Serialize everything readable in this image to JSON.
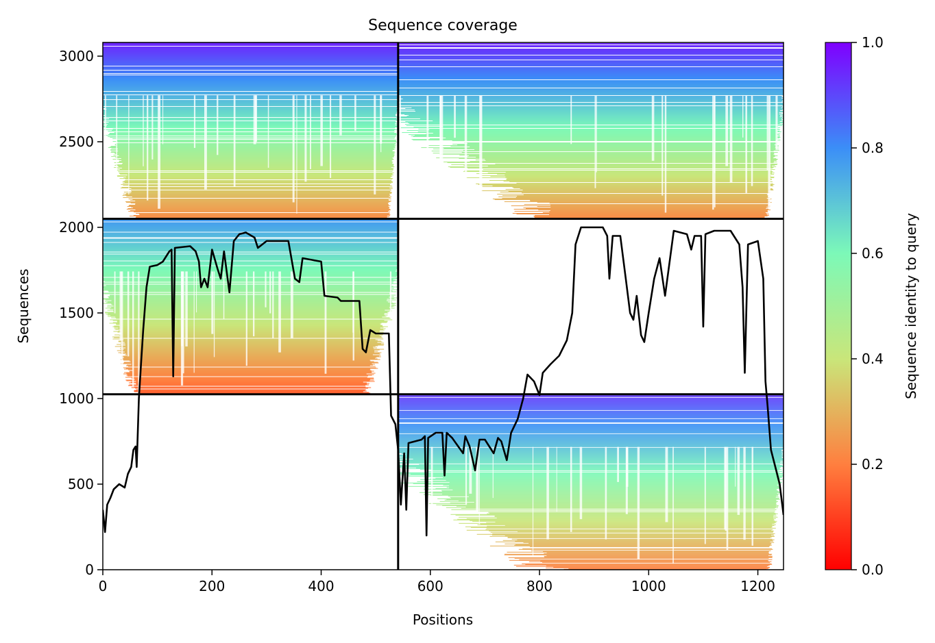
{
  "chart_data": {
    "type": "heatmap",
    "title": "Sequence coverage",
    "xlabel": "Positions",
    "ylabel": "Sequences",
    "xlim": [
      0,
      1247
    ],
    "ylim": [
      0,
      3080
    ],
    "x_ticks": [
      0,
      200,
      400,
      600,
      800,
      1000,
      1200
    ],
    "y_ticks": [
      0,
      500,
      1000,
      1500,
      2000,
      2500,
      3000
    ],
    "colorbar": {
      "label": "Sequence identity to query",
      "range": [
        0.0,
        1.0
      ],
      "ticks": [
        "0.0",
        "0.2",
        "0.4",
        "0.6",
        "0.8",
        "1.0"
      ],
      "colormap": "rainbow",
      "stops": [
        "#ff0000",
        "#ff7f3f",
        "#c9e67a",
        "#7cf9b8",
        "#3b8ef7",
        "#7f00ff"
      ]
    },
    "domain_boundaries": {
      "vertical_x": [
        541
      ],
      "horizontal_y": [
        1025,
        2050
      ]
    },
    "blocks": [
      {
        "x": [
          0,
          541
        ],
        "y": [
          2050,
          3080
        ],
        "identity_top": 0.95,
        "identity_bottom": 0.22,
        "dense_from_x": 70,
        "dense_to_x": 520
      },
      {
        "x": [
          541,
          1247
        ],
        "y": [
          2050,
          3080
        ],
        "identity_top": 0.95,
        "identity_bottom": 0.22,
        "dense_from_x": 860,
        "dense_to_x": 1210
      },
      {
        "x": [
          0,
          541
        ],
        "y": [
          1025,
          2050
        ],
        "identity_top": 0.78,
        "identity_bottom": 0.15,
        "dense_from_x": 70,
        "dense_to_x": 470
      },
      {
        "x": [
          541,
          1247
        ],
        "y": [
          0,
          1025
        ],
        "identity_top": 0.92,
        "identity_bottom": 0.2,
        "dense_from_x": 860,
        "dense_to_x": 1215
      }
    ],
    "coverage_line": {
      "color": "#000000",
      "points": [
        [
          0,
          350
        ],
        [
          4,
          220
        ],
        [
          8,
          380
        ],
        [
          14,
          420
        ],
        [
          20,
          470
        ],
        [
          30,
          500
        ],
        [
          40,
          480
        ],
        [
          46,
          560
        ],
        [
          52,
          600
        ],
        [
          56,
          700
        ],
        [
          60,
          720
        ],
        [
          62,
          600
        ],
        [
          66,
          1000
        ],
        [
          70,
          1200
        ],
        [
          74,
          1400
        ],
        [
          80,
          1650
        ],
        [
          86,
          1770
        ],
        [
          100,
          1780
        ],
        [
          110,
          1800
        ],
        [
          122,
          1860
        ],
        [
          126,
          1870
        ],
        [
          129,
          1130
        ],
        [
          132,
          1880
        ],
        [
          160,
          1890
        ],
        [
          170,
          1860
        ],
        [
          176,
          1800
        ],
        [
          180,
          1650
        ],
        [
          186,
          1700
        ],
        [
          192,
          1650
        ],
        [
          200,
          1870
        ],
        [
          210,
          1760
        ],
        [
          216,
          1700
        ],
        [
          222,
          1860
        ],
        [
          232,
          1620
        ],
        [
          240,
          1920
        ],
        [
          250,
          1960
        ],
        [
          262,
          1970
        ],
        [
          278,
          1940
        ],
        [
          284,
          1880
        ],
        [
          300,
          1920
        ],
        [
          340,
          1920
        ],
        [
          352,
          1700
        ],
        [
          360,
          1680
        ],
        [
          366,
          1820
        ],
        [
          400,
          1800
        ],
        [
          406,
          1600
        ],
        [
          430,
          1590
        ],
        [
          436,
          1570
        ],
        [
          470,
          1570
        ],
        [
          476,
          1290
        ],
        [
          482,
          1270
        ],
        [
          490,
          1400
        ],
        [
          500,
          1380
        ],
        [
          524,
          1380
        ],
        [
          528,
          900
        ],
        [
          536,
          850
        ],
        [
          541,
          700
        ],
        [
          546,
          380
        ],
        [
          552,
          680
        ],
        [
          556,
          350
        ],
        [
          560,
          740
        ],
        [
          584,
          760
        ],
        [
          590,
          780
        ],
        [
          593,
          200
        ],
        [
          596,
          770
        ],
        [
          610,
          800
        ],
        [
          622,
          800
        ],
        [
          626,
          550
        ],
        [
          630,
          800
        ],
        [
          640,
          770
        ],
        [
          660,
          680
        ],
        [
          664,
          780
        ],
        [
          672,
          720
        ],
        [
          682,
          580
        ],
        [
          690,
          760
        ],
        [
          700,
          760
        ],
        [
          716,
          680
        ],
        [
          724,
          770
        ],
        [
          730,
          750
        ],
        [
          740,
          640
        ],
        [
          748,
          800
        ],
        [
          760,
          880
        ],
        [
          770,
          1000
        ],
        [
          778,
          1140
        ],
        [
          790,
          1100
        ],
        [
          800,
          1020
        ],
        [
          806,
          1150
        ],
        [
          820,
          1200
        ],
        [
          836,
          1250
        ],
        [
          850,
          1340
        ],
        [
          860,
          1500
        ],
        [
          866,
          1900
        ],
        [
          876,
          2000
        ],
        [
          916,
          2000
        ],
        [
          924,
          1950
        ],
        [
          928,
          1700
        ],
        [
          934,
          1950
        ],
        [
          948,
          1950
        ],
        [
          958,
          1700
        ],
        [
          966,
          1500
        ],
        [
          972,
          1460
        ],
        [
          978,
          1600
        ],
        [
          986,
          1370
        ],
        [
          992,
          1330
        ],
        [
          1000,
          1500
        ],
        [
          1010,
          1700
        ],
        [
          1020,
          1820
        ],
        [
          1030,
          1600
        ],
        [
          1046,
          1980
        ],
        [
          1070,
          1960
        ],
        [
          1078,
          1870
        ],
        [
          1084,
          1950
        ],
        [
          1096,
          1950
        ],
        [
          1100,
          1420
        ],
        [
          1104,
          1960
        ],
        [
          1120,
          1980
        ],
        [
          1150,
          1980
        ],
        [
          1166,
          1900
        ],
        [
          1172,
          1650
        ],
        [
          1176,
          1150
        ],
        [
          1182,
          1900
        ],
        [
          1200,
          1920
        ],
        [
          1210,
          1700
        ],
        [
          1214,
          1100
        ],
        [
          1218,
          950
        ],
        [
          1224,
          700
        ],
        [
          1232,
          600
        ],
        [
          1240,
          500
        ],
        [
          1247,
          320
        ]
      ]
    }
  }
}
